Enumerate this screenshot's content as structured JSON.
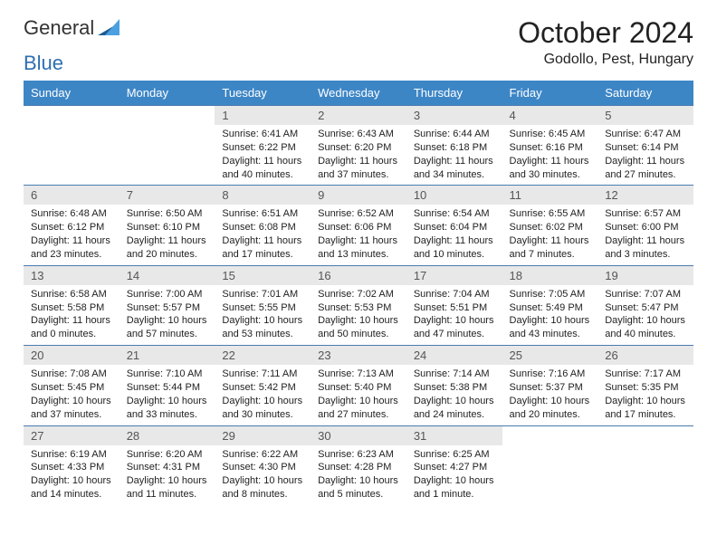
{
  "brand": {
    "word1": "General",
    "word2": "Blue"
  },
  "title": "October 2024",
  "location": "Godollo, Pest, Hungary",
  "colors": {
    "header_bg": "#3d86c6",
    "header_text": "#ffffff",
    "row_divider": "#4a7bb0",
    "daynum_bg": "#e8e8e8",
    "daynum_text": "#555555",
    "body_text": "#222222",
    "page_bg": "#ffffff",
    "logo_gray": "#333333",
    "logo_blue": "#2f6fb0",
    "logo_tri_dark": "#1f5a94",
    "logo_tri_light": "#4aa0e0"
  },
  "typography": {
    "month_title_fontsize_pt": 24,
    "location_fontsize_pt": 12,
    "weekday_fontsize_pt": 10,
    "daynum_fontsize_pt": 10,
    "body_fontsize_pt": 8
  },
  "weekdays": [
    "Sunday",
    "Monday",
    "Tuesday",
    "Wednesday",
    "Thursday",
    "Friday",
    "Saturday"
  ],
  "first_weekday_index": 2,
  "days": [
    {
      "n": 1,
      "sunrise": "6:41 AM",
      "sunset": "6:22 PM",
      "daylight": "11 hours and 40 minutes."
    },
    {
      "n": 2,
      "sunrise": "6:43 AM",
      "sunset": "6:20 PM",
      "daylight": "11 hours and 37 minutes."
    },
    {
      "n": 3,
      "sunrise": "6:44 AM",
      "sunset": "6:18 PM",
      "daylight": "11 hours and 34 minutes."
    },
    {
      "n": 4,
      "sunrise": "6:45 AM",
      "sunset": "6:16 PM",
      "daylight": "11 hours and 30 minutes."
    },
    {
      "n": 5,
      "sunrise": "6:47 AM",
      "sunset": "6:14 PM",
      "daylight": "11 hours and 27 minutes."
    },
    {
      "n": 6,
      "sunrise": "6:48 AM",
      "sunset": "6:12 PM",
      "daylight": "11 hours and 23 minutes."
    },
    {
      "n": 7,
      "sunrise": "6:50 AM",
      "sunset": "6:10 PM",
      "daylight": "11 hours and 20 minutes."
    },
    {
      "n": 8,
      "sunrise": "6:51 AM",
      "sunset": "6:08 PM",
      "daylight": "11 hours and 17 minutes."
    },
    {
      "n": 9,
      "sunrise": "6:52 AM",
      "sunset": "6:06 PM",
      "daylight": "11 hours and 13 minutes."
    },
    {
      "n": 10,
      "sunrise": "6:54 AM",
      "sunset": "6:04 PM",
      "daylight": "11 hours and 10 minutes."
    },
    {
      "n": 11,
      "sunrise": "6:55 AM",
      "sunset": "6:02 PM",
      "daylight": "11 hours and 7 minutes."
    },
    {
      "n": 12,
      "sunrise": "6:57 AM",
      "sunset": "6:00 PM",
      "daylight": "11 hours and 3 minutes."
    },
    {
      "n": 13,
      "sunrise": "6:58 AM",
      "sunset": "5:58 PM",
      "daylight": "11 hours and 0 minutes."
    },
    {
      "n": 14,
      "sunrise": "7:00 AM",
      "sunset": "5:57 PM",
      "daylight": "10 hours and 57 minutes."
    },
    {
      "n": 15,
      "sunrise": "7:01 AM",
      "sunset": "5:55 PM",
      "daylight": "10 hours and 53 minutes."
    },
    {
      "n": 16,
      "sunrise": "7:02 AM",
      "sunset": "5:53 PM",
      "daylight": "10 hours and 50 minutes."
    },
    {
      "n": 17,
      "sunrise": "7:04 AM",
      "sunset": "5:51 PM",
      "daylight": "10 hours and 47 minutes."
    },
    {
      "n": 18,
      "sunrise": "7:05 AM",
      "sunset": "5:49 PM",
      "daylight": "10 hours and 43 minutes."
    },
    {
      "n": 19,
      "sunrise": "7:07 AM",
      "sunset": "5:47 PM",
      "daylight": "10 hours and 40 minutes."
    },
    {
      "n": 20,
      "sunrise": "7:08 AM",
      "sunset": "5:45 PM",
      "daylight": "10 hours and 37 minutes."
    },
    {
      "n": 21,
      "sunrise": "7:10 AM",
      "sunset": "5:44 PM",
      "daylight": "10 hours and 33 minutes."
    },
    {
      "n": 22,
      "sunrise": "7:11 AM",
      "sunset": "5:42 PM",
      "daylight": "10 hours and 30 minutes."
    },
    {
      "n": 23,
      "sunrise": "7:13 AM",
      "sunset": "5:40 PM",
      "daylight": "10 hours and 27 minutes."
    },
    {
      "n": 24,
      "sunrise": "7:14 AM",
      "sunset": "5:38 PM",
      "daylight": "10 hours and 24 minutes."
    },
    {
      "n": 25,
      "sunrise": "7:16 AM",
      "sunset": "5:37 PM",
      "daylight": "10 hours and 20 minutes."
    },
    {
      "n": 26,
      "sunrise": "7:17 AM",
      "sunset": "5:35 PM",
      "daylight": "10 hours and 17 minutes."
    },
    {
      "n": 27,
      "sunrise": "6:19 AM",
      "sunset": "4:33 PM",
      "daylight": "10 hours and 14 minutes."
    },
    {
      "n": 28,
      "sunrise": "6:20 AM",
      "sunset": "4:31 PM",
      "daylight": "10 hours and 11 minutes."
    },
    {
      "n": 29,
      "sunrise": "6:22 AM",
      "sunset": "4:30 PM",
      "daylight": "10 hours and 8 minutes."
    },
    {
      "n": 30,
      "sunrise": "6:23 AM",
      "sunset": "4:28 PM",
      "daylight": "10 hours and 5 minutes."
    },
    {
      "n": 31,
      "sunrise": "6:25 AM",
      "sunset": "4:27 PM",
      "daylight": "10 hours and 1 minute."
    }
  ],
  "labels": {
    "sunrise": "Sunrise:",
    "sunset": "Sunset:",
    "daylight": "Daylight:"
  }
}
